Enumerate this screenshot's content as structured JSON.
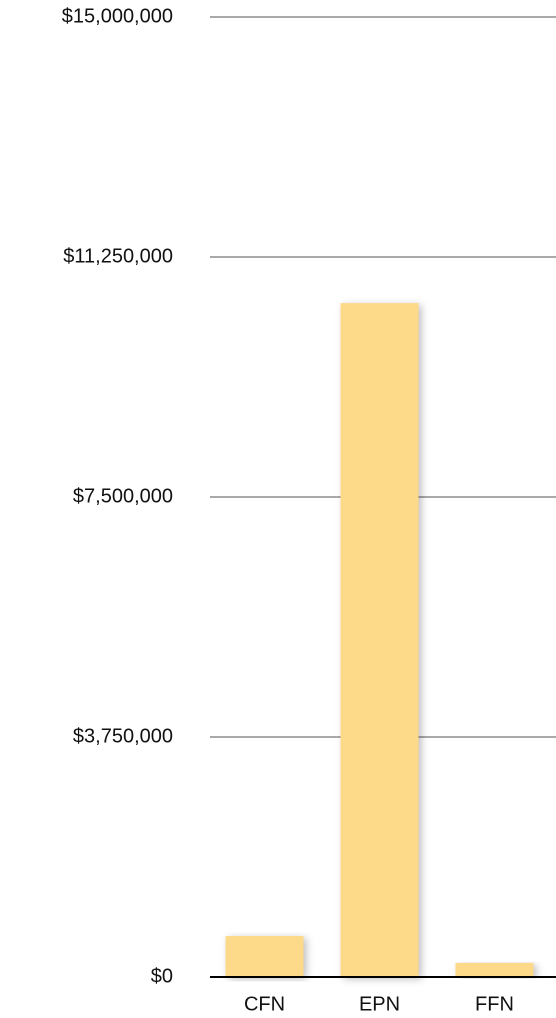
{
  "chart_data": {
    "type": "bar",
    "categories": [
      "CFN",
      "EPN",
      "FFN"
    ],
    "values": [
      640000,
      10530000,
      220000
    ],
    "color": "#fdd98a",
    "ylim": [
      0,
      15000000
    ],
    "yticks": [
      {
        "value": 0,
        "label": "$0"
      },
      {
        "value": 3750000,
        "label": "$3,750,000"
      },
      {
        "value": 7500000,
        "label": "$7,500,000"
      },
      {
        "value": 11250000,
        "label": "$11,250,000"
      },
      {
        "value": 15000000,
        "label": "$15,000,000"
      }
    ],
    "grid": true
  }
}
